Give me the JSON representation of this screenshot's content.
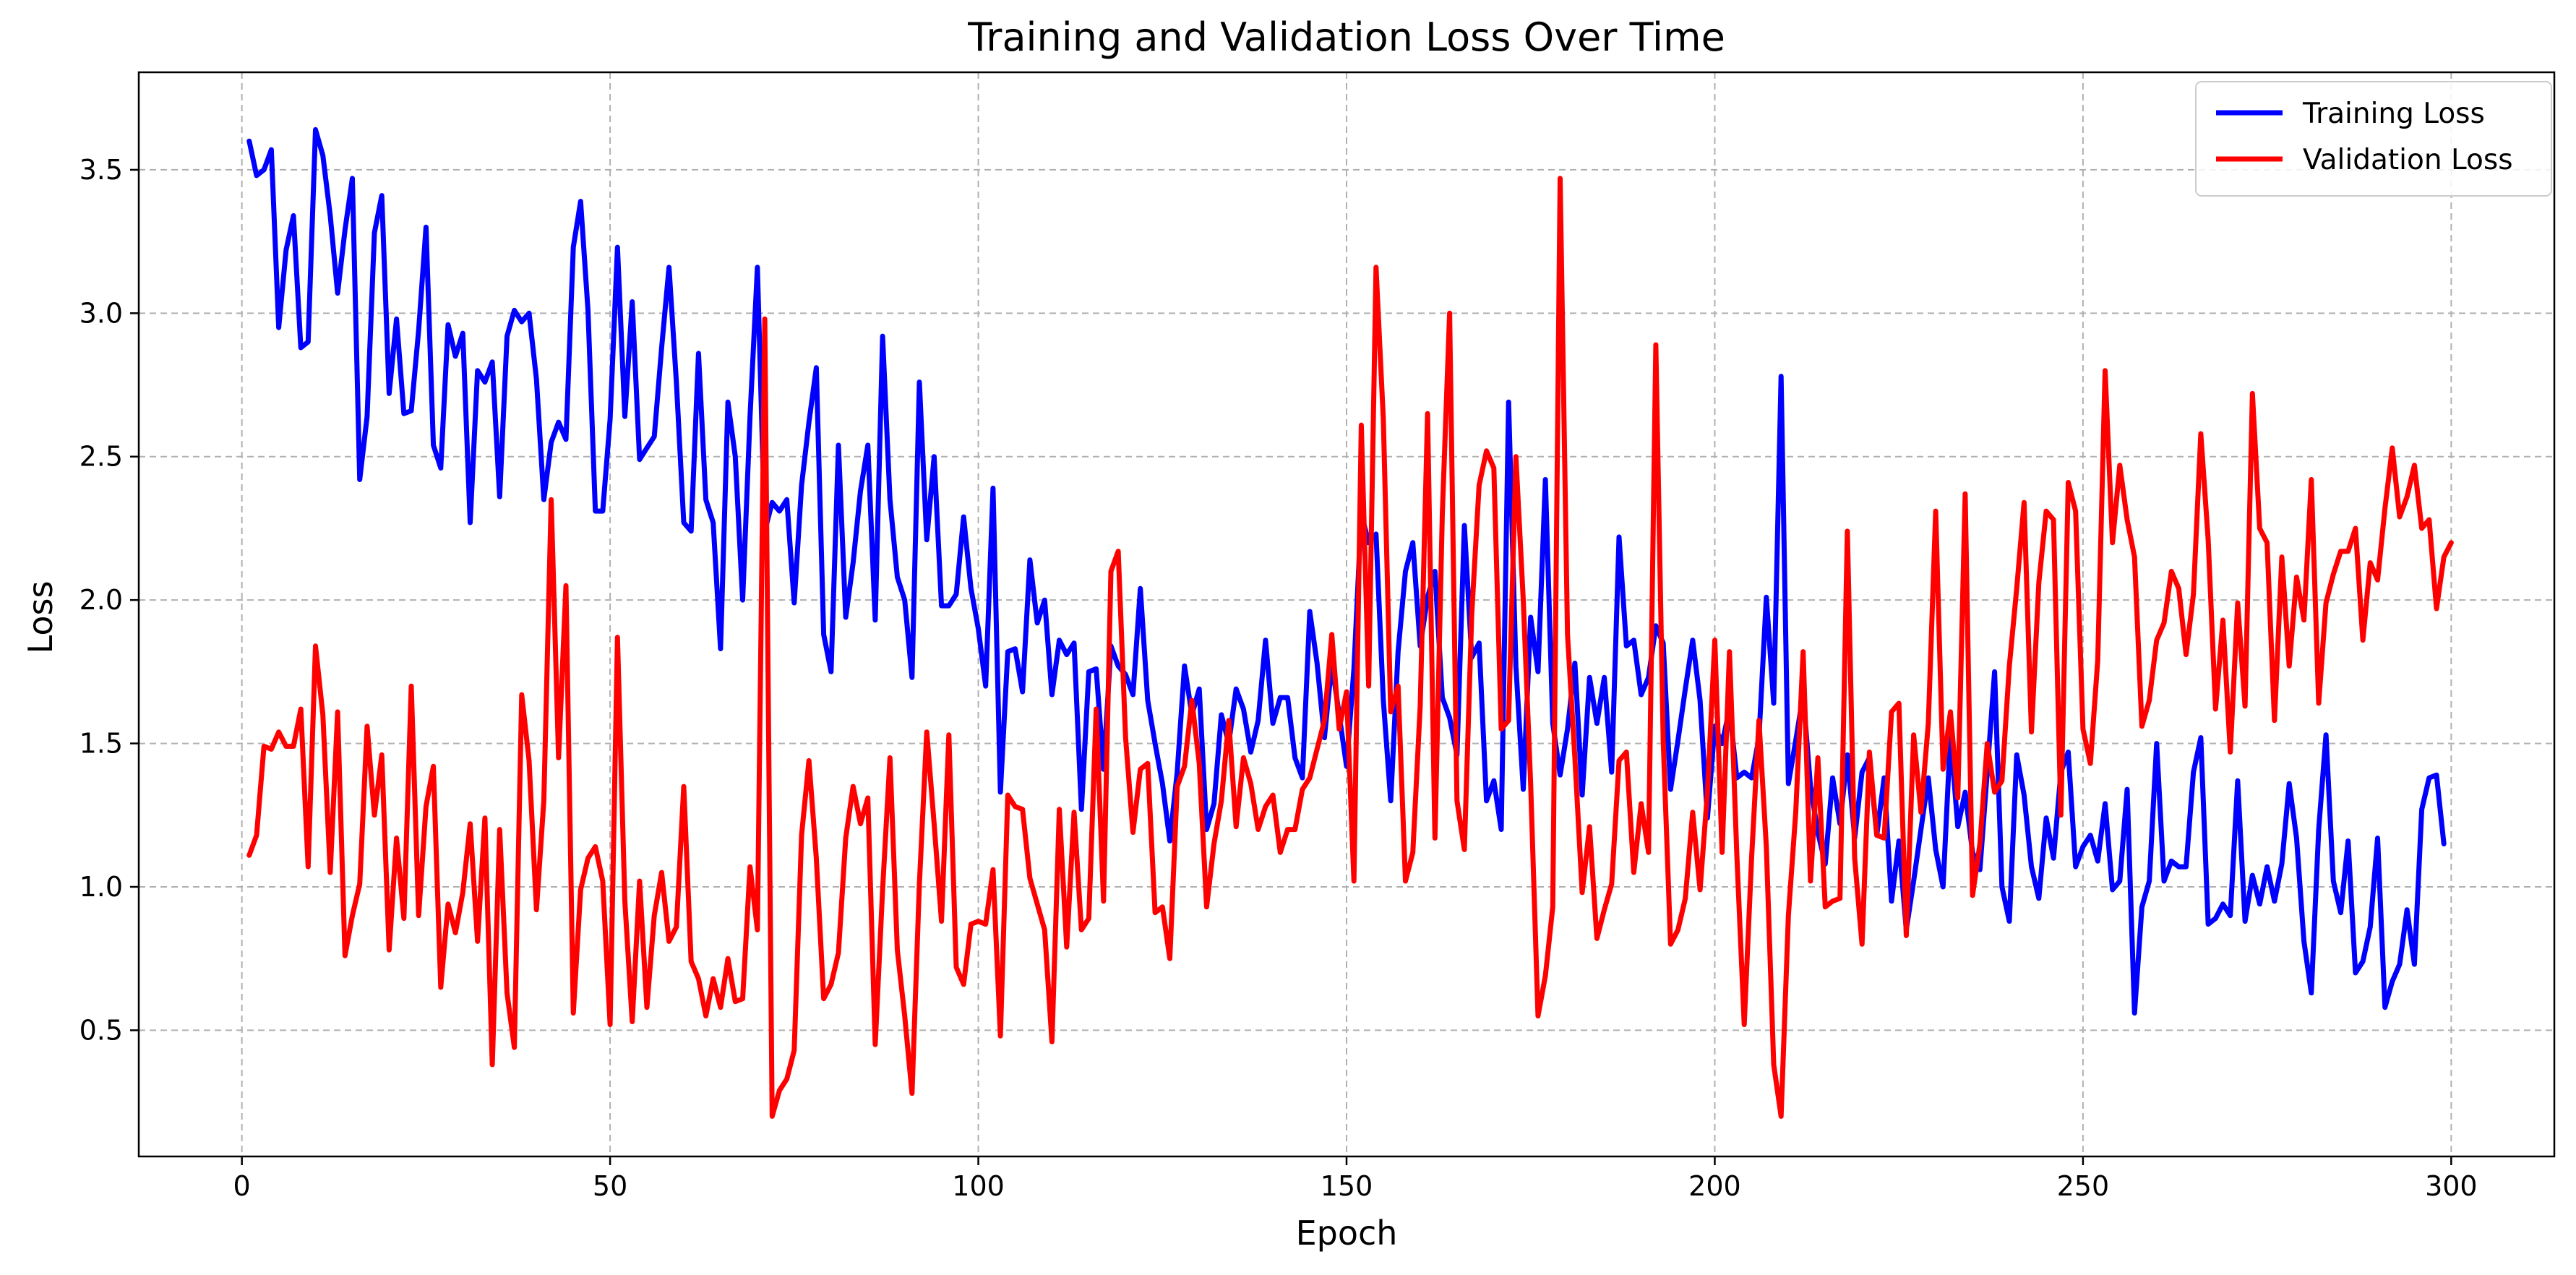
{
  "colors": {
    "train": "#0000ff",
    "val": "#ff0000",
    "grid": "#b0b0b0",
    "background": "#ffffff"
  },
  "chart_data": {
    "type": "line",
    "title": "Training and Validation Loss Over Time",
    "xlabel": "Epoch",
    "ylabel": "Loss",
    "xlim": [
      -14,
      314
    ],
    "ylim": [
      0.06,
      3.84
    ],
    "xticks": [
      0,
      50,
      100,
      150,
      200,
      250,
      300
    ],
    "yticks": [
      0.5,
      1.0,
      1.5,
      2.0,
      2.5,
      3.0,
      3.5
    ],
    "xtick_labels": [
      "0",
      "50",
      "100",
      "150",
      "200",
      "250",
      "300"
    ],
    "ytick_labels": [
      "0.5",
      "1.0",
      "1.5",
      "2.0",
      "2.5",
      "3.0",
      "3.5"
    ],
    "grid": true,
    "grid_style": "dashed",
    "legend_position": "top-right",
    "x": {
      "start": 1,
      "end": 300,
      "step": 1
    },
    "series": [
      {
        "name": "Training Loss",
        "color": "#0000ff",
        "values": [
          3.6,
          3.48,
          3.5,
          3.57,
          2.95,
          3.22,
          3.34,
          2.88,
          2.9,
          3.64,
          3.55,
          3.34,
          3.07,
          3.29,
          3.47,
          2.42,
          2.64,
          3.28,
          3.41,
          2.72,
          2.98,
          2.65,
          2.66,
          2.94,
          3.3,
          2.54,
          2.46,
          2.96,
          2.85,
          2.93,
          2.27,
          2.8,
          2.76,
          2.83,
          2.36,
          2.92,
          3.01,
          2.97,
          3.0,
          2.77,
          2.35,
          2.55,
          2.62,
          2.56,
          3.23,
          3.39,
          3.01,
          2.31,
          2.31,
          2.63,
          3.23,
          2.64,
          3.04,
          2.49,
          2.53,
          2.57,
          2.88,
          3.16,
          2.76,
          2.27,
          2.24,
          2.86,
          2.35,
          2.27,
          1.83,
          2.69,
          2.5,
          2.0,
          2.64,
          3.16,
          2.24,
          2.34,
          2.31,
          2.35,
          1.99,
          2.4,
          2.62,
          2.81,
          1.88,
          1.75,
          2.54,
          1.94,
          2.13,
          2.38,
          2.54,
          1.93,
          2.92,
          2.35,
          2.08,
          2.0,
          1.73,
          2.76,
          2.21,
          2.5,
          1.98,
          1.98,
          2.02,
          2.29,
          2.04,
          1.9,
          1.7,
          2.39,
          1.33,
          1.82,
          1.83,
          1.68,
          2.14,
          1.92,
          2.0,
          1.67,
          1.86,
          1.81,
          1.85,
          1.27,
          1.75,
          1.76,
          1.41,
          1.84,
          1.77,
          1.74,
          1.67,
          2.04,
          1.65,
          1.5,
          1.36,
          1.16,
          1.4,
          1.77,
          1.6,
          1.69,
          1.2,
          1.29,
          1.6,
          1.5,
          1.69,
          1.62,
          1.47,
          1.58,
          1.86,
          1.57,
          1.66,
          1.66,
          1.45,
          1.38,
          1.96,
          1.78,
          1.52,
          1.78,
          1.6,
          1.42,
          1.76,
          2.3,
          2.2,
          2.23,
          1.65,
          1.3,
          1.82,
          2.1,
          2.2,
          1.84,
          2.01,
          2.1,
          1.66,
          1.59,
          1.46,
          2.26,
          1.8,
          1.85,
          1.3,
          1.37,
          1.2,
          2.69,
          1.77,
          1.34,
          1.94,
          1.75,
          2.42,
          1.57,
          1.39,
          1.55,
          1.78,
          1.32,
          1.73,
          1.57,
          1.73,
          1.4,
          2.22,
          1.84,
          1.86,
          1.67,
          1.73,
          1.91,
          1.85,
          1.34,
          1.51,
          1.69,
          1.86,
          1.65,
          1.24,
          1.56,
          1.5,
          1.62,
          1.38,
          1.4,
          1.38,
          1.52,
          2.01,
          1.64,
          2.78,
          1.36,
          1.51,
          1.67,
          1.35,
          1.19,
          1.08,
          1.38,
          1.22,
          1.46,
          1.17,
          1.4,
          1.45,
          1.18,
          1.38,
          0.95,
          1.16,
          0.85,
          1.02,
          1.2,
          1.38,
          1.13,
          1.0,
          1.53,
          1.21,
          1.33,
          1.12,
          1.06,
          1.4,
          1.75,
          1.0,
          0.88,
          1.46,
          1.32,
          1.07,
          0.96,
          1.24,
          1.1,
          1.4,
          1.47,
          1.07,
          1.14,
          1.18,
          1.09,
          1.29,
          0.99,
          1.02,
          1.34,
          0.56,
          0.93,
          1.02,
          1.5,
          1.02,
          1.09,
          1.07,
          1.07,
          1.4,
          1.52,
          0.87,
          0.89,
          0.94,
          0.9,
          1.37,
          0.88,
          1.04,
          0.94,
          1.07,
          0.95,
          1.08,
          1.36,
          1.17,
          0.81,
          0.63,
          1.2,
          1.53,
          1.02,
          0.91,
          1.16,
          0.7,
          0.74,
          0.86,
          1.17,
          0.58,
          0.67,
          0.73,
          0.92,
          0.73,
          1.27,
          1.38,
          1.39,
          1.15
        ]
      },
      {
        "name": "Validation Loss",
        "color": "#ff0000",
        "values": [
          1.11,
          1.18,
          1.49,
          1.48,
          1.54,
          1.49,
          1.49,
          1.62,
          1.07,
          1.84,
          1.6,
          1.05,
          1.61,
          0.76,
          0.9,
          1.01,
          1.56,
          1.25,
          1.46,
          0.78,
          1.17,
          0.89,
          1.7,
          0.9,
          1.28,
          1.42,
          0.65,
          0.94,
          0.84,
          0.98,
          1.22,
          0.81,
          1.24,
          0.38,
          1.2,
          0.63,
          0.44,
          1.67,
          1.44,
          0.92,
          1.3,
          2.35,
          1.45,
          2.05,
          0.56,
          0.99,
          1.1,
          1.14,
          1.02,
          0.52,
          1.87,
          0.95,
          0.53,
          1.02,
          0.58,
          0.9,
          1.05,
          0.81,
          0.86,
          1.35,
          0.74,
          0.68,
          0.55,
          0.68,
          0.58,
          0.75,
          0.6,
          0.61,
          1.07,
          0.85,
          2.98,
          0.2,
          0.29,
          0.33,
          0.43,
          1.18,
          1.44,
          1.1,
          0.61,
          0.66,
          0.77,
          1.17,
          1.35,
          1.22,
          1.31,
          0.45,
          0.99,
          1.45,
          0.78,
          0.55,
          0.28,
          1.01,
          1.54,
          1.22,
          0.88,
          1.53,
          0.72,
          0.66,
          0.87,
          0.88,
          0.87,
          1.06,
          0.48,
          1.32,
          1.28,
          1.27,
          1.03,
          0.94,
          0.85,
          0.46,
          1.27,
          0.79,
          1.26,
          0.85,
          0.89,
          1.62,
          0.95,
          2.1,
          2.17,
          1.52,
          1.19,
          1.41,
          1.43,
          0.91,
          0.93,
          0.75,
          1.35,
          1.42,
          1.65,
          1.43,
          0.93,
          1.15,
          1.3,
          1.58,
          1.21,
          1.45,
          1.36,
          1.2,
          1.28,
          1.32,
          1.12,
          1.2,
          1.2,
          1.34,
          1.38,
          1.48,
          1.58,
          1.88,
          1.55,
          1.68,
          1.02,
          2.61,
          1.7,
          3.16,
          2.63,
          1.61,
          1.7,
          1.02,
          1.12,
          1.63,
          2.65,
          1.17,
          2.3,
          3.0,
          1.3,
          1.13,
          1.95,
          2.4,
          2.52,
          2.46,
          1.55,
          1.58,
          2.5,
          2.0,
          1.36,
          0.55,
          0.69,
          0.93,
          3.47,
          1.88,
          1.45,
          0.98,
          1.21,
          0.82,
          0.92,
          1.01,
          1.44,
          1.47,
          1.05,
          1.29,
          1.12,
          2.89,
          1.51,
          0.8,
          0.85,
          0.96,
          1.26,
          0.99,
          1.33,
          1.86,
          1.12,
          1.82,
          1.11,
          0.52,
          1.1,
          1.58,
          1.14,
          0.38,
          0.2,
          0.9,
          1.26,
          1.82,
          1.02,
          1.45,
          0.93,
          0.95,
          0.96,
          2.24,
          1.1,
          0.8,
          1.47,
          1.18,
          1.17,
          1.61,
          1.64,
          0.83,
          1.53,
          1.26,
          1.57,
          2.31,
          1.41,
          1.61,
          1.31,
          2.37,
          0.97,
          1.15,
          1.5,
          1.33,
          1.37,
          1.77,
          2.04,
          2.34,
          1.54,
          2.06,
          2.31,
          2.28,
          1.25,
          2.41,
          2.31,
          1.55,
          1.43,
          1.79,
          2.8,
          2.2,
          2.47,
          2.28,
          2.15,
          1.56,
          1.65,
          1.86,
          1.92,
          2.1,
          2.04,
          1.81,
          2.02,
          2.58,
          2.21,
          1.62,
          1.93,
          1.47,
          1.99,
          1.63,
          2.72,
          2.25,
          2.2,
          1.58,
          2.15,
          1.77,
          2.08,
          1.93,
          2.42,
          1.64,
          1.99,
          2.09,
          2.17,
          2.17,
          2.25,
          1.86,
          2.13,
          2.07,
          2.32,
          2.53,
          2.29,
          2.36,
          2.47,
          2.25,
          2.28,
          1.97,
          2.15,
          2.2
        ]
      }
    ]
  }
}
